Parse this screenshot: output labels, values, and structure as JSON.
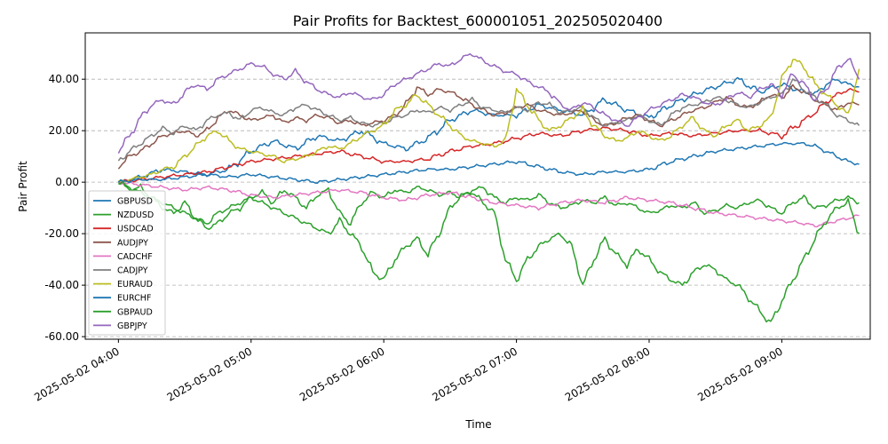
{
  "chart_data": {
    "type": "line",
    "title": "Pair Profits for Backtest_600001051_202505020400",
    "xlabel": "Time",
    "ylabel": "Pair Profit",
    "x_range_minutes": [
      -15,
      340
    ],
    "ylim": [
      -61,
      58
    ],
    "y_ticks": [
      -60,
      -40,
      -20,
      0,
      20,
      40
    ],
    "y_tick_labels": [
      "-60.00",
      "-40.00",
      "-20.00",
      "0.00",
      "20.00",
      "40.00"
    ],
    "x_ticks_minutes": [
      0,
      60,
      120,
      180,
      240,
      300
    ],
    "x_tick_labels": [
      "2025-05-02 04:00",
      "2025-05-02 05:00",
      "2025-05-02 06:00",
      "2025-05-02 07:00",
      "2025-05-02 08:00",
      "2025-05-02 09:00"
    ],
    "grid": "y-dashed",
    "legend_position": "center-left",
    "series": [
      {
        "name": "GBPUSD",
        "color": "#1f77b4",
        "t": [
          0,
          10,
          20,
          30,
          40,
          50,
          60,
          70,
          80,
          90,
          100,
          110,
          120,
          130,
          140,
          150,
          160,
          170,
          180,
          190,
          200,
          210,
          220,
          230,
          240,
          250,
          260,
          270,
          280,
          290,
          300,
          310,
          315,
          320,
          325,
          330,
          335
        ],
        "values": [
          0,
          2,
          5,
          4,
          3,
          5,
          12,
          16,
          13,
          18,
          16,
          20,
          15,
          13,
          17,
          24,
          28,
          26,
          26,
          30,
          28,
          26,
          32,
          28,
          25,
          30,
          34,
          37,
          40,
          35,
          38,
          35,
          34,
          38,
          40,
          38,
          37
        ]
      },
      {
        "name": "NZDUSD",
        "color": "#2ca02c",
        "t": [
          0,
          5,
          10,
          15,
          20,
          25,
          30,
          35,
          40,
          45,
          50,
          55,
          60,
          65,
          70,
          75,
          80,
          85,
          90,
          95,
          100,
          105,
          110,
          115,
          120,
          125,
          130,
          135,
          140,
          145,
          150,
          155,
          160,
          165,
          170,
          175,
          180,
          185,
          190,
          195,
          200,
          205,
          210,
          215,
          220,
          225,
          230,
          235,
          240,
          245,
          250,
          255,
          260,
          265,
          270,
          275,
          280,
          285,
          290,
          295,
          300,
          305,
          310,
          315,
          320,
          325,
          330,
          335
        ],
        "values": [
          0,
          -3,
          -2,
          -6,
          -10,
          -12,
          -8,
          -14,
          -18,
          -16,
          -12,
          -10,
          -6,
          -4,
          -8,
          -3,
          -6,
          -10,
          -5,
          -3,
          -12,
          -16,
          -8,
          -4,
          -6,
          -3,
          -4,
          -2,
          -3,
          -5,
          -4,
          -6,
          -3,
          -2,
          -6,
          -8,
          -6,
          -7,
          -5,
          -8,
          -10,
          -9,
          -7,
          -8,
          -6,
          -9,
          -8,
          -10,
          -12,
          -11,
          -9,
          -10,
          -8,
          -12,
          -11,
          -9,
          -10,
          -8,
          -7,
          -10,
          -12,
          -8,
          -6,
          -10,
          -9,
          -7,
          -6,
          -8
        ]
      },
      {
        "name": "USDCAD",
        "color": "#d62728",
        "t": [
          0,
          10,
          20,
          30,
          40,
          50,
          60,
          70,
          80,
          90,
          100,
          110,
          120,
          130,
          140,
          150,
          160,
          170,
          180,
          190,
          200,
          210,
          220,
          230,
          240,
          250,
          260,
          270,
          280,
          290,
          300,
          310,
          315,
          320,
          325,
          330,
          335
        ],
        "values": [
          0,
          1,
          2,
          3,
          4,
          6,
          8,
          9,
          10,
          11,
          12,
          10,
          8,
          8,
          9,
          12,
          14,
          15,
          17,
          19,
          18,
          20,
          21,
          20,
          18,
          19,
          18,
          19,
          20,
          20,
          18,
          24,
          27,
          31,
          34,
          36,
          35
        ]
      },
      {
        "name": "AUDJPY",
        "color": "#8c564b",
        "t": [
          0,
          5,
          10,
          15,
          20,
          25,
          30,
          35,
          40,
          45,
          50,
          55,
          60,
          65,
          70,
          75,
          80,
          85,
          90,
          95,
          100,
          105,
          110,
          115,
          120,
          125,
          130,
          135,
          140,
          145,
          150,
          155,
          160,
          165,
          170,
          175,
          180,
          185,
          190,
          195,
          200,
          205,
          210,
          215,
          220,
          225,
          230,
          235,
          240,
          245,
          250,
          255,
          260,
          265,
          270,
          275,
          280,
          285,
          290,
          295,
          300,
          305,
          310,
          315,
          320,
          325,
          330,
          335
        ],
        "values": [
          6,
          10,
          12,
          15,
          18,
          19,
          20,
          18,
          20,
          25,
          28,
          26,
          24,
          25,
          26,
          23,
          25,
          24,
          26,
          25,
          23,
          24,
          22,
          23,
          24,
          26,
          30,
          37,
          34,
          36,
          35,
          33,
          30,
          28,
          26,
          27,
          29,
          30,
          28,
          27,
          26,
          27,
          28,
          24,
          22,
          23,
          25,
          26,
          24,
          22,
          24,
          26,
          28,
          29,
          31,
          33,
          30,
          29,
          31,
          34,
          33,
          37,
          35,
          32,
          30,
          28,
          31,
          30
        ]
      },
      {
        "name": "CADCHF",
        "color": "#e377c2",
        "t": [
          0,
          10,
          20,
          30,
          40,
          50,
          60,
          70,
          80,
          90,
          100,
          110,
          120,
          130,
          140,
          150,
          160,
          170,
          180,
          190,
          200,
          210,
          220,
          230,
          240,
          250,
          260,
          270,
          280,
          290,
          300,
          310,
          315,
          320,
          325,
          330,
          335
        ],
        "values": [
          0,
          -1,
          -2,
          -3,
          -2,
          -3,
          -5,
          -6,
          -5,
          -4,
          -3,
          -4,
          -6,
          -7,
          -5,
          -4,
          -6,
          -8,
          -9,
          -10,
          -8,
          -7,
          -8,
          -6,
          -7,
          -8,
          -10,
          -12,
          -13,
          -14,
          -15,
          -16,
          -17,
          -16,
          -15,
          -14,
          -13
        ]
      },
      {
        "name": "CADJPY",
        "color": "#7f7f7f",
        "t": [
          0,
          5,
          10,
          15,
          20,
          25,
          30,
          35,
          40,
          45,
          50,
          55,
          60,
          65,
          70,
          75,
          80,
          85,
          90,
          95,
          100,
          105,
          110,
          115,
          120,
          125,
          130,
          135,
          140,
          145,
          150,
          155,
          160,
          165,
          170,
          175,
          180,
          185,
          190,
          195,
          200,
          205,
          210,
          215,
          220,
          225,
          230,
          235,
          240,
          245,
          250,
          255,
          260,
          265,
          270,
          275,
          280,
          285,
          290,
          295,
          300,
          305,
          310,
          315,
          320,
          325,
          330,
          335
        ],
        "values": [
          8,
          12,
          15,
          18,
          21,
          19,
          22,
          20,
          24,
          26,
          27,
          24,
          28,
          29,
          27,
          26,
          29,
          30,
          28,
          26,
          24,
          25,
          23,
          22,
          23,
          25,
          26,
          28,
          27,
          29,
          28,
          30,
          32,
          29,
          28,
          27,
          29,
          28,
          31,
          30,
          27,
          28,
          29,
          25,
          22,
          23,
          24,
          26,
          24,
          22,
          26,
          29,
          30,
          31,
          33,
          32,
          30,
          29,
          31,
          33,
          34,
          40,
          36,
          33,
          30,
          26,
          24,
          22
        ]
      },
      {
        "name": "EURAUD",
        "color": "#bcbd22",
        "t": [
          0,
          5,
          10,
          15,
          20,
          25,
          30,
          35,
          40,
          45,
          50,
          55,
          60,
          65,
          70,
          75,
          80,
          85,
          90,
          95,
          100,
          105,
          110,
          115,
          120,
          125,
          130,
          135,
          140,
          145,
          150,
          155,
          160,
          165,
          170,
          175,
          180,
          185,
          190,
          195,
          200,
          205,
          210,
          215,
          220,
          225,
          230,
          235,
          240,
          245,
          250,
          255,
          260,
          265,
          270,
          275,
          280,
          285,
          290,
          295,
          300,
          305,
          310,
          315,
          320,
          325,
          330,
          335
        ],
        "values": [
          0,
          1,
          2,
          3,
          5,
          6,
          10,
          14,
          18,
          20,
          16,
          13,
          12,
          11,
          10,
          8,
          9,
          10,
          12,
          14,
          13,
          15,
          18,
          20,
          22,
          28,
          30,
          34,
          30,
          26,
          22,
          18,
          16,
          15,
          14,
          16,
          36,
          30,
          24,
          20,
          22,
          25,
          28,
          22,
          18,
          16,
          17,
          20,
          18,
          16,
          18,
          22,
          25,
          20,
          18,
          22,
          24,
          20,
          22,
          25,
          40,
          48,
          45,
          38,
          34,
          30,
          26,
          44
        ]
      },
      {
        "name": "EURCHF",
        "color": "#17becf_swap",
        "t": [
          0,
          10,
          20,
          30,
          40,
          50,
          60,
          70,
          80,
          90,
          100,
          110,
          120,
          130,
          140,
          150,
          160,
          170,
          180,
          190,
          200,
          210,
          220,
          230,
          240,
          250,
          260,
          270,
          280,
          290,
          300,
          310,
          315,
          320,
          325,
          330,
          335
        ],
        "values": [
          0,
          1,
          1,
          2,
          3,
          2,
          3,
          2,
          1,
          0,
          1,
          2,
          3,
          4,
          5,
          5,
          6,
          7,
          8,
          6,
          4,
          3,
          4,
          4,
          5,
          8,
          10,
          12,
          13,
          14,
          15,
          15,
          14,
          12,
          10,
          8,
          7
        ]
      },
      {
        "name": "GBPAUD",
        "color": "#2ca02c",
        "t": [
          0,
          5,
          10,
          15,
          20,
          25,
          30,
          35,
          40,
          45,
          50,
          55,
          60,
          65,
          70,
          75,
          80,
          85,
          90,
          95,
          100,
          105,
          110,
          115,
          120,
          125,
          130,
          135,
          140,
          145,
          150,
          155,
          160,
          165,
          170,
          175,
          180,
          185,
          190,
          195,
          200,
          205,
          210,
          215,
          220,
          225,
          230,
          235,
          240,
          245,
          250,
          255,
          260,
          265,
          270,
          275,
          280,
          285,
          290,
          295,
          300,
          305,
          310,
          315,
          320,
          325,
          330,
          335
        ],
        "values": [
          0,
          -2,
          -4,
          -6,
          -8,
          -10,
          -12,
          -14,
          -16,
          -12,
          -10,
          -8,
          -6,
          -8,
          -10,
          -12,
          -14,
          -16,
          -18,
          -20,
          -15,
          -20,
          -25,
          -35,
          -38,
          -30,
          -25,
          -22,
          -28,
          -20,
          -10,
          -5,
          -4,
          -8,
          -12,
          -30,
          -38,
          -30,
          -25,
          -22,
          -20,
          -25,
          -40,
          -30,
          -22,
          -28,
          -32,
          -26,
          -30,
          -35,
          -38,
          -40,
          -35,
          -32,
          -34,
          -38,
          -40,
          -45,
          -50,
          -55,
          -46,
          -38,
          -30,
          -22,
          -15,
          -10,
          -8,
          -20
        ]
      },
      {
        "name": "GBPJPY",
        "color": "#9467bd",
        "t": [
          0,
          5,
          10,
          15,
          20,
          25,
          30,
          35,
          40,
          45,
          50,
          55,
          60,
          65,
          70,
          75,
          80,
          85,
          90,
          95,
          100,
          105,
          110,
          115,
          120,
          125,
          130,
          135,
          140,
          145,
          150,
          155,
          160,
          165,
          170,
          175,
          180,
          185,
          190,
          195,
          200,
          205,
          210,
          215,
          220,
          225,
          230,
          235,
          240,
          245,
          250,
          255,
          260,
          265,
          270,
          275,
          280,
          285,
          290,
          295,
          300,
          305,
          310,
          315,
          320,
          325,
          330,
          335
        ],
        "values": [
          12,
          18,
          25,
          30,
          32,
          30,
          35,
          38,
          36,
          40,
          42,
          44,
          46,
          45,
          42,
          40,
          43,
          39,
          36,
          34,
          33,
          35,
          33,
          32,
          34,
          38,
          40,
          42,
          44,
          46,
          45,
          48,
          50,
          47,
          45,
          43,
          42,
          39,
          37,
          35,
          30,
          28,
          31,
          29,
          26,
          24,
          22,
          25,
          28,
          30,
          32,
          34,
          33,
          31,
          30,
          32,
          35,
          33,
          36,
          38,
          34,
          42,
          38,
          32,
          36,
          44,
          48,
          40
        ]
      }
    ]
  }
}
